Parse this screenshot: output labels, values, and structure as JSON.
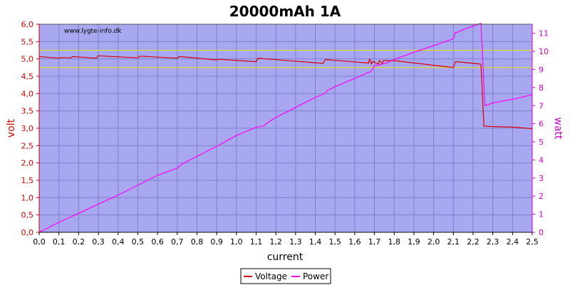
{
  "chart_data": {
    "type": "line",
    "title": "20000mAh 1A",
    "watermark": "www.lygte-info.dk",
    "xlabel": "current",
    "ylabel_left": "volt",
    "ylabel_right": "watt",
    "xlim": [
      0,
      2.5
    ],
    "ylim_left": [
      0,
      6
    ],
    "ylim_right": [
      0,
      11.5
    ],
    "x_ticks": [
      "0,0",
      "0,1",
      "0,2",
      "0,3",
      "0,4",
      "0,5",
      "0,6",
      "0,7",
      "0,8",
      "0,9",
      "1,0",
      "1,1",
      "1,2",
      "1,3",
      "1,4",
      "1,5",
      "1,6",
      "1,7",
      "1,8",
      "1,9",
      "2,0",
      "2,1",
      "2,2",
      "2,3",
      "2,4",
      "2,5"
    ],
    "y_left_ticks": [
      "0,0",
      "0,5",
      "1,0",
      "1,5",
      "2,0",
      "2,5",
      "3,0",
      "3,5",
      "4,0",
      "4,5",
      "5,0",
      "5,5",
      "6,0"
    ],
    "y_right_ticks": [
      "0",
      "1",
      "2",
      "3",
      "4",
      "5",
      "6",
      "7",
      "8",
      "9",
      "10",
      "11"
    ],
    "grid": true,
    "legend_position": "bottom-center",
    "reference_lines": [
      {
        "axis": "left",
        "value": 5.25,
        "color": "#e6e600"
      },
      {
        "axis": "left",
        "value": 4.75,
        "color": "#e6e600"
      }
    ],
    "colors": {
      "plot_background": "#a8a8f0",
      "grid": "#7f7fcc",
      "voltage": "#dd0000",
      "power": "#ff00ff",
      "left_axis": "#cc0000",
      "right_axis": "#cc00cc"
    },
    "series": [
      {
        "name": "Voltage",
        "axis": "left",
        "color": "#dd0000",
        "x": [
          0.0,
          0.1,
          0.11,
          0.16,
          0.17,
          0.29,
          0.3,
          0.5,
          0.51,
          0.7,
          0.71,
          0.9,
          0.91,
          1.1,
          1.11,
          1.44,
          1.45,
          1.67,
          1.675,
          1.685,
          1.69,
          1.72,
          1.725,
          1.74,
          1.745,
          1.8,
          2.1,
          2.11,
          2.15,
          2.24,
          2.255,
          2.3,
          2.4,
          2.5
        ],
        "values": [
          5.07,
          5.02,
          5.04,
          5.03,
          5.07,
          5.02,
          5.09,
          5.03,
          5.08,
          5.02,
          5.07,
          4.97,
          4.99,
          4.92,
          5.02,
          4.87,
          4.98,
          4.88,
          5.0,
          4.85,
          4.93,
          4.85,
          4.96,
          4.86,
          4.95,
          4.95,
          4.75,
          4.92,
          4.9,
          4.85,
          3.06,
          3.05,
          3.03,
          2.99
        ]
      },
      {
        "name": "Power",
        "axis": "right",
        "color": "#ff00ff",
        "x": [
          0.0,
          0.1,
          0.2,
          0.3,
          0.4,
          0.5,
          0.6,
          0.7,
          0.72,
          0.8,
          0.9,
          1.0,
          1.1,
          1.14,
          1.15,
          1.2,
          1.3,
          1.4,
          1.45,
          1.46,
          1.5,
          1.6,
          1.67,
          1.68,
          1.7,
          1.74,
          1.76,
          1.8,
          1.9,
          2.0,
          2.1,
          2.11,
          2.12,
          2.15,
          2.2,
          2.24,
          2.26,
          2.3,
          2.4,
          2.5
        ],
        "values": [
          0.0,
          0.55,
          1.05,
          1.55,
          2.05,
          2.6,
          3.15,
          3.55,
          3.75,
          4.2,
          4.75,
          5.35,
          5.8,
          5.88,
          6.0,
          6.35,
          6.9,
          7.45,
          7.68,
          7.82,
          8.05,
          8.5,
          8.85,
          8.85,
          9.2,
          9.3,
          9.35,
          9.55,
          9.95,
          10.32,
          10.7,
          11.05,
          11.05,
          11.2,
          11.4,
          11.55,
          7.0,
          7.15,
          7.35,
          7.6
        ]
      }
    ]
  }
}
